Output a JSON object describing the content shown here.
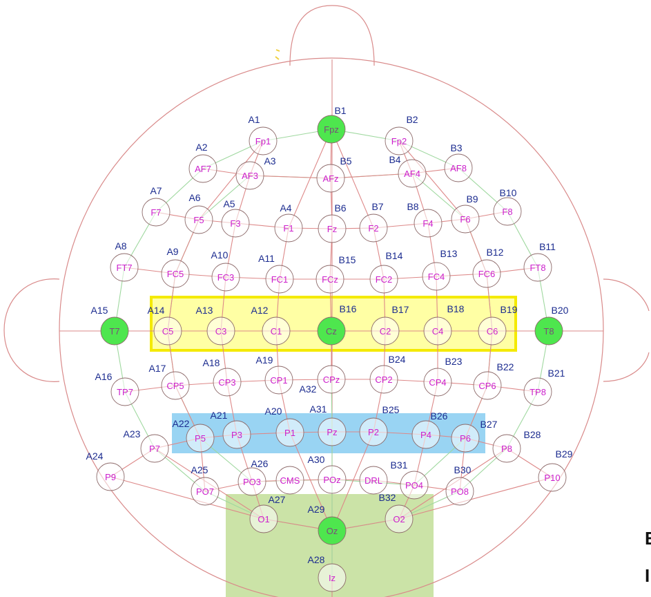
{
  "colors": {
    "head_outline": "#d98a8a",
    "grid_green": "#9fd89f",
    "grid_red": "#dd8888",
    "electrode_label": "#cc1fcc",
    "channel_label": "#1b2b8f",
    "highlight_fill": "#4ee64e",
    "yellow_box": "#ffff5a",
    "blue_box": "#7fc9f0",
    "green_box": "#b9d98a"
  },
  "electrodes": [
    {
      "id": "Fpz",
      "label": "Fpz",
      "channel": "B1",
      "highlight": true
    },
    {
      "id": "Fp1",
      "label": "Fp1",
      "channel": "A1",
      "highlight": false
    },
    {
      "id": "Fp2",
      "label": "Fp2",
      "channel": "B2",
      "highlight": false
    },
    {
      "id": "AF7",
      "label": "AF7",
      "channel": "A2",
      "highlight": false
    },
    {
      "id": "AF3",
      "label": "AF3",
      "channel": "A3",
      "highlight": false
    },
    {
      "id": "AFz",
      "label": "AFz",
      "channel": "B5",
      "highlight": false
    },
    {
      "id": "AF4",
      "label": "AF4",
      "channel": "B4",
      "highlight": false
    },
    {
      "id": "AF8",
      "label": "AF8",
      "channel": "B3",
      "highlight": false
    },
    {
      "id": "F7",
      "label": "F7",
      "channel": "A7",
      "highlight": false
    },
    {
      "id": "F5",
      "label": "F5",
      "channel": "A6",
      "highlight": false
    },
    {
      "id": "F3",
      "label": "F3",
      "channel": "A5",
      "highlight": false
    },
    {
      "id": "F1",
      "label": "F1",
      "channel": "A4",
      "highlight": false
    },
    {
      "id": "Fz",
      "label": "Fz",
      "channel": "B6",
      "highlight": false
    },
    {
      "id": "F2",
      "label": "F2",
      "channel": "B7",
      "highlight": false
    },
    {
      "id": "F4",
      "label": "F4",
      "channel": "B8",
      "highlight": false
    },
    {
      "id": "F6",
      "label": "F6",
      "channel": "B9",
      "highlight": false
    },
    {
      "id": "F8",
      "label": "F8",
      "channel": "B10",
      "highlight": false
    },
    {
      "id": "FT7",
      "label": "FT7",
      "channel": "A8",
      "highlight": false
    },
    {
      "id": "FC5",
      "label": "FC5",
      "channel": "A9",
      "highlight": false
    },
    {
      "id": "FC3",
      "label": "FC3",
      "channel": "A10",
      "highlight": false
    },
    {
      "id": "FC1",
      "label": "FC1",
      "channel": "A11",
      "highlight": false
    },
    {
      "id": "FCz",
      "label": "FCz",
      "channel": "B15",
      "highlight": false
    },
    {
      "id": "FC2",
      "label": "FC2",
      "channel": "B14",
      "highlight": false
    },
    {
      "id": "FC4",
      "label": "FC4",
      "channel": "B13",
      "highlight": false
    },
    {
      "id": "FC6",
      "label": "FC6",
      "channel": "B12",
      "highlight": false
    },
    {
      "id": "FT8",
      "label": "FT8",
      "channel": "B11",
      "highlight": false
    },
    {
      "id": "T7",
      "label": "T7",
      "channel": "A15",
      "highlight": true
    },
    {
      "id": "C5",
      "label": "C5",
      "channel": "A14",
      "highlight": false
    },
    {
      "id": "C3",
      "label": "C3",
      "channel": "A13",
      "highlight": false
    },
    {
      "id": "C1",
      "label": "C1",
      "channel": "A12",
      "highlight": false
    },
    {
      "id": "Cz",
      "label": "Cz",
      "channel": "B16",
      "highlight": true
    },
    {
      "id": "C2",
      "label": "C2",
      "channel": "B17",
      "highlight": false
    },
    {
      "id": "C4",
      "label": "C4",
      "channel": "B18",
      "highlight": false
    },
    {
      "id": "C6",
      "label": "C6",
      "channel": "B19",
      "highlight": false
    },
    {
      "id": "T8",
      "label": "T8",
      "channel": "B20",
      "highlight": true
    },
    {
      "id": "TP7",
      "label": "TP7",
      "channel": "A16",
      "highlight": false
    },
    {
      "id": "CP5",
      "label": "CP5",
      "channel": "A17",
      "highlight": false
    },
    {
      "id": "CP3",
      "label": "CP3",
      "channel": "A18",
      "highlight": false
    },
    {
      "id": "CP1",
      "label": "CP1",
      "channel": "A19",
      "highlight": false
    },
    {
      "id": "CPz",
      "label": "CPz",
      "channel": "A32",
      "highlight": false
    },
    {
      "id": "CP2",
      "label": "CP2",
      "channel": "B24",
      "highlight": false
    },
    {
      "id": "CP4",
      "label": "CP4",
      "channel": "B23",
      "highlight": false
    },
    {
      "id": "CP6",
      "label": "CP6",
      "channel": "B22",
      "highlight": false
    },
    {
      "id": "TP8",
      "label": "TP8",
      "channel": "B21",
      "highlight": false
    },
    {
      "id": "P7",
      "label": "P7",
      "channel": "A23",
      "highlight": false
    },
    {
      "id": "P5",
      "label": "P5",
      "channel": "A22",
      "highlight": false
    },
    {
      "id": "P3",
      "label": "P3",
      "channel": "A21",
      "highlight": false
    },
    {
      "id": "P1",
      "label": "P1",
      "channel": "A20",
      "highlight": false
    },
    {
      "id": "Pz",
      "label": "Pz",
      "channel": "A31",
      "highlight": false
    },
    {
      "id": "P2",
      "label": "P2",
      "channel": "B25",
      "highlight": false
    },
    {
      "id": "P4",
      "label": "P4",
      "channel": "B26",
      "highlight": false
    },
    {
      "id": "P6",
      "label": "P6",
      "channel": "B27",
      "highlight": false
    },
    {
      "id": "P8",
      "label": "P8",
      "channel": "B28",
      "highlight": false
    },
    {
      "id": "P9",
      "label": "P9",
      "channel": "A24",
      "highlight": false
    },
    {
      "id": "P10",
      "label": "P10",
      "channel": "B29",
      "highlight": false
    },
    {
      "id": "PO7",
      "label": "PO7",
      "channel": "A25",
      "highlight": false
    },
    {
      "id": "PO3",
      "label": "PO3",
      "channel": "A26",
      "highlight": false
    },
    {
      "id": "CMS",
      "label": "CMS",
      "channel": "",
      "highlight": false
    },
    {
      "id": "POz",
      "label": "POz",
      "channel": "A30",
      "highlight": false
    },
    {
      "id": "DRL",
      "label": "DRL",
      "channel": "",
      "highlight": false
    },
    {
      "id": "PO4",
      "label": "PO4",
      "channel": "B31",
      "highlight": false
    },
    {
      "id": "PO8",
      "label": "PO8",
      "channel": "B30",
      "highlight": false
    },
    {
      "id": "O1",
      "label": "O1",
      "channel": "A27",
      "highlight": false
    },
    {
      "id": "Oz",
      "label": "Oz",
      "channel": "A29",
      "highlight": true
    },
    {
      "id": "O2",
      "label": "O2",
      "channel": "B32",
      "highlight": false
    },
    {
      "id": "Iz",
      "label": "Iz",
      "channel": "A28",
      "highlight": false
    }
  ],
  "corner_glyphs": {
    "top": "E",
    "bottom": "I"
  }
}
